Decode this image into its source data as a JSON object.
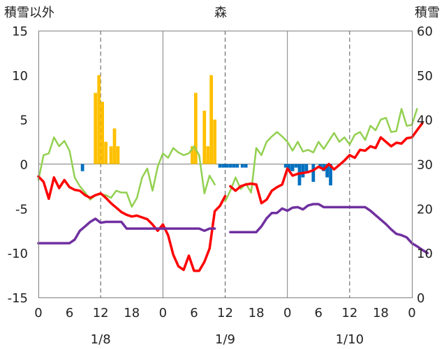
{
  "chart_data": {
    "type": "bar+line",
    "title": "森",
    "left_axis_label": "積雪以外",
    "right_axis_label": "積雪",
    "left_ylim": [
      -15,
      15
    ],
    "left_ticks": [
      15,
      10,
      5,
      0,
      -5,
      -10,
      -15
    ],
    "right_ylim": [
      0,
      60
    ],
    "right_ticks": [
      60,
      50,
      40,
      30,
      20,
      10,
      0
    ],
    "xlim_hours": [
      0,
      72
    ],
    "x_tick_labels": [
      "0",
      "6",
      "12",
      "18",
      "0",
      "6",
      "12",
      "18",
      "0",
      "6",
      "12",
      "18",
      "0"
    ],
    "date_labels": [
      {
        "label": "1/8",
        "center_hour": 12
      },
      {
        "label": "1/9",
        "center_hour": 36
      },
      {
        "label": "1/10",
        "center_hour": 60
      }
    ],
    "grid": true,
    "colors": {
      "precip_bar": "#FFC000",
      "snow_change_bar": "#0070C0",
      "temperature_line": "#FF0000",
      "green_line": "#92D050",
      "snow_depth_line": "#7030A0"
    },
    "precip_bars": [
      {
        "hour": 8.5,
        "value": -0.8
      },
      {
        "hour": 11,
        "value": 8
      },
      {
        "hour": 11.67,
        "value": 10
      },
      {
        "hour": 12.33,
        "value": 7
      },
      {
        "hour": 13,
        "value": 2.5
      },
      {
        "hour": 14,
        "value": 2
      },
      {
        "hour": 14.67,
        "value": 4
      },
      {
        "hour": 15.33,
        "value": 2
      },
      {
        "hour": 29.67,
        "value": 2
      },
      {
        "hour": 30.33,
        "value": 8
      },
      {
        "hour": 32,
        "value": 6
      },
      {
        "hour": 32.67,
        "value": 2
      },
      {
        "hour": 33.33,
        "value": 10
      },
      {
        "hour": 34,
        "value": 5
      },
      {
        "hour": 35,
        "value": -0.4
      },
      {
        "hour": 35.67,
        "value": -0.4
      },
      {
        "hour": 36.33,
        "value": -0.4
      },
      {
        "hour": 37,
        "value": -0.4
      },
      {
        "hour": 37.67,
        "value": -0.4
      },
      {
        "hour": 38.33,
        "value": -0.4
      },
      {
        "hour": 39.33,
        "value": -0.4
      },
      {
        "hour": 40,
        "value": -0.4
      },
      {
        "hour": 47.67,
        "value": -0.4
      },
      {
        "hour": 48.33,
        "value": -0.8
      },
      {
        "hour": 49,
        "value": -0.8
      },
      {
        "hour": 49.67,
        "value": -0.4
      },
      {
        "hour": 50.33,
        "value": -2.4
      },
      {
        "hour": 51,
        "value": -1.5
      },
      {
        "hour": 51.67,
        "value": -0.8
      },
      {
        "hour": 53,
        "value": -2
      },
      {
        "hour": 54.33,
        "value": -0.4
      },
      {
        "hour": 55,
        "value": -0.8
      },
      {
        "hour": 55.67,
        "value": -1.5
      },
      {
        "hour": 56.33,
        "value": -2.4
      }
    ],
    "series": [
      {
        "key": "green_line",
        "axis": "left",
        "segments": [
          [
            [
              0,
              -1.8
            ],
            [
              1,
              1
            ],
            [
              2,
              1.2
            ],
            [
              3,
              3
            ],
            [
              4,
              2
            ],
            [
              5,
              2.6
            ],
            [
              6,
              1.5
            ],
            [
              7,
              -1.5
            ],
            [
              8,
              -2.5
            ],
            [
              9,
              -3.2
            ],
            [
              10,
              -4
            ],
            [
              11,
              -3.5
            ],
            [
              12,
              -3.4
            ],
            [
              13,
              -3.5
            ],
            [
              14,
              -3.8
            ],
            [
              15,
              -3
            ],
            [
              16,
              -3.2
            ],
            [
              17,
              -3.2
            ],
            [
              18,
              -4.8
            ],
            [
              19,
              -3.8
            ],
            [
              20,
              -1.5
            ],
            [
              21,
              -0.5
            ],
            [
              22,
              -3
            ],
            [
              23,
              -0.3
            ],
            [
              24,
              1.2
            ],
            [
              25,
              0.7
            ],
            [
              26,
              1.8
            ],
            [
              27,
              1.3
            ],
            [
              28,
              1
            ],
            [
              29,
              1.2
            ],
            [
              30,
              2
            ],
            [
              31,
              1
            ],
            [
              32,
              -3.3
            ],
            [
              33,
              -1.3
            ],
            [
              34,
              -2.3
            ]
          ],
          [
            [
              36,
              -4.2
            ],
            [
              37,
              -3
            ],
            [
              38,
              -1.5
            ],
            [
              39,
              -2.8
            ],
            [
              40,
              -2.2
            ],
            [
              41,
              -3.2
            ],
            [
              42,
              1.8
            ],
            [
              43,
              1
            ],
            [
              44,
              2.5
            ],
            [
              45,
              3.1
            ],
            [
              46,
              3.6
            ],
            [
              47,
              3.1
            ],
            [
              48,
              2.5
            ],
            [
              49,
              1.5
            ],
            [
              50,
              2.5
            ],
            [
              51,
              1.4
            ],
            [
              52,
              1.6
            ],
            [
              53,
              1.3
            ],
            [
              54,
              2.5
            ],
            [
              55,
              1.7
            ],
            [
              56,
              2.6
            ],
            [
              57,
              3.5
            ],
            [
              58,
              2.5
            ],
            [
              59,
              3
            ],
            [
              60,
              2.2
            ],
            [
              61,
              3.3
            ],
            [
              62,
              3.6
            ],
            [
              63,
              2.7
            ],
            [
              64,
              4.3
            ],
            [
              65,
              3.8
            ],
            [
              66,
              5
            ],
            [
              67,
              5.2
            ],
            [
              68,
              3.6
            ],
            [
              69,
              3.7
            ],
            [
              70,
              6.2
            ],
            [
              71,
              4.3
            ],
            [
              72,
              4.4
            ],
            [
              73,
              6.2
            ]
          ]
        ]
      },
      {
        "key": "temperature_line",
        "axis": "left",
        "segments": [
          [
            [
              0,
              -1.4
            ],
            [
              1,
              -2
            ],
            [
              2,
              -3.9
            ],
            [
              3,
              -1.5
            ],
            [
              4,
              -2.7
            ],
            [
              5,
              -1.8
            ],
            [
              6,
              -2.6
            ],
            [
              7,
              -2.9
            ],
            [
              8,
              -3
            ],
            [
              9,
              -3.5
            ],
            [
              10,
              -3.8
            ],
            [
              11,
              -3.5
            ],
            [
              12,
              -3.3
            ],
            [
              13,
              -3.8
            ],
            [
              14,
              -4.4
            ],
            [
              15,
              -4.9
            ],
            [
              16,
              -5.4
            ],
            [
              17,
              -5.7
            ],
            [
              18,
              -5.9
            ],
            [
              19,
              -5.8
            ],
            [
              20,
              -6
            ],
            [
              21,
              -6.2
            ],
            [
              22,
              -6.8
            ],
            [
              23,
              -7.5
            ],
            [
              24,
              -6.8
            ],
            [
              25,
              -8
            ],
            [
              26,
              -10.2
            ],
            [
              27,
              -11.5
            ],
            [
              28,
              -11.9
            ],
            [
              29,
              -10.3
            ],
            [
              30,
              -12
            ],
            [
              31,
              -12
            ],
            [
              32,
              -11
            ],
            [
              33,
              -9.5
            ],
            [
              34,
              -5.3
            ],
            [
              35,
              -4.7
            ],
            [
              36,
              -3.6
            ]
          ],
          [
            [
              37,
              -2.5
            ],
            [
              38,
              -3
            ],
            [
              39,
              -2.5
            ],
            [
              40,
              -2.3
            ],
            [
              41,
              -2.2
            ],
            [
              42,
              -2.3
            ],
            [
              43,
              -4.4
            ],
            [
              44,
              -4
            ],
            [
              45,
              -3
            ],
            [
              46,
              -2.6
            ],
            [
              47,
              -2.3
            ],
            [
              48,
              -0.5
            ],
            [
              49,
              -1.3
            ],
            [
              50,
              -1.1
            ],
            [
              51,
              -1
            ],
            [
              52,
              -0.9
            ],
            [
              53,
              -0.7
            ],
            [
              54,
              -0.3
            ],
            [
              55,
              -0.6
            ],
            [
              56,
              0
            ],
            [
              57,
              -0.6
            ],
            [
              58,
              -0.1
            ],
            [
              59,
              0.4
            ],
            [
              60,
              1
            ],
            [
              61,
              0.7
            ],
            [
              62,
              1.6
            ],
            [
              63,
              1.5
            ],
            [
              64,
              2
            ],
            [
              65,
              1.8
            ],
            [
              66,
              3
            ],
            [
              67,
              2.5
            ],
            [
              68,
              2
            ],
            [
              69,
              2.4
            ],
            [
              70,
              2.3
            ],
            [
              71,
              2.9
            ],
            [
              72,
              3
            ],
            [
              73,
              3.8
            ],
            [
              74,
              4.6
            ]
          ]
        ]
      },
      {
        "key": "snow_depth_line",
        "axis": "right",
        "segments": [
          [
            [
              0,
              12.2
            ],
            [
              1,
              12.2
            ],
            [
              2,
              12.2
            ],
            [
              3,
              12.2
            ],
            [
              4,
              12.2
            ],
            [
              5,
              12.2
            ],
            [
              6,
              12.2
            ],
            [
              7,
              13
            ],
            [
              8,
              15
            ],
            [
              9,
              16
            ],
            [
              10,
              17
            ],
            [
              11,
              17.7
            ],
            [
              12,
              16.8
            ],
            [
              13,
              17
            ],
            [
              14,
              17
            ],
            [
              15,
              17
            ],
            [
              16,
              17
            ],
            [
              17,
              15.5
            ],
            [
              18,
              15.5
            ],
            [
              19,
              15.5
            ],
            [
              20,
              15.5
            ],
            [
              21,
              15.5
            ],
            [
              22,
              15.5
            ],
            [
              23,
              15.5
            ],
            [
              24,
              15.5
            ],
            [
              25,
              15.5
            ],
            [
              26,
              15.5
            ],
            [
              27,
              15.5
            ],
            [
              28,
              15.5
            ],
            [
              29,
              15.5
            ],
            [
              30,
              15.5
            ],
            [
              31,
              15.5
            ],
            [
              32,
              15
            ],
            [
              33,
              15.5
            ],
            [
              34,
              15.5
            ]
          ],
          [
            [
              37,
              14.7
            ],
            [
              38,
              14.7
            ],
            [
              39,
              14.7
            ],
            [
              40,
              14.7
            ],
            [
              41,
              14.7
            ],
            [
              42,
              14.7
            ],
            [
              43,
              16
            ],
            [
              44,
              17.8
            ],
            [
              45,
              19
            ],
            [
              46,
              19
            ],
            [
              47,
              20
            ],
            [
              48,
              19.5
            ],
            [
              49,
              20.2
            ],
            [
              50,
              20.3
            ],
            [
              51,
              19.8
            ],
            [
              52,
              20.7
            ],
            [
              53,
              21
            ],
            [
              54,
              21
            ],
            [
              55,
              20.3
            ],
            [
              56,
              20.3
            ],
            [
              57,
              20.3
            ],
            [
              58,
              20.3
            ],
            [
              59,
              20.3
            ],
            [
              60,
              20.3
            ],
            [
              61,
              20.3
            ],
            [
              62,
              20.3
            ],
            [
              63,
              20.3
            ],
            [
              64,
              19.5
            ],
            [
              65,
              18.5
            ],
            [
              66,
              17.5
            ],
            [
              67,
              16.5
            ],
            [
              68,
              15.3
            ],
            [
              69,
              14.3
            ],
            [
              70,
              14
            ],
            [
              71,
              13.5
            ],
            [
              72,
              12.2
            ],
            [
              73,
              11.5
            ],
            [
              74,
              10.7
            ],
            [
              75,
              10
            ]
          ]
        ]
      }
    ]
  }
}
